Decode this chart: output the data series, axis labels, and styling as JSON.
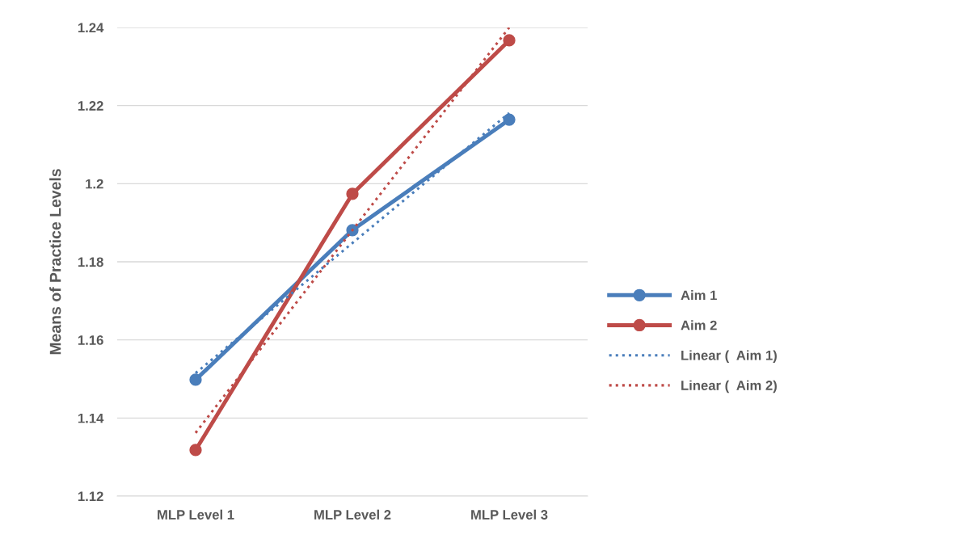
{
  "chart_data": {
    "type": "line",
    "ylabel": "Means of Practice Levels",
    "categories": [
      "MLP Level 1",
      "MLP Level 2",
      "MLP Level 3"
    ],
    "series": [
      {
        "name": "Aim 1",
        "color": "#4a7ebb",
        "values": [
          1.1498,
          1.1881,
          1.2164
        ],
        "marker": "circle",
        "line_style": "solid"
      },
      {
        "name": "Aim 2",
        "color": "#be4b48",
        "values": [
          1.1318,
          1.1974,
          1.2367
        ],
        "marker": "circle",
        "line_style": "solid"
      },
      {
        "name": "Linear (  Aim 1)",
        "color": "#4a7ebb",
        "values": [
          1.1515,
          1.1848,
          1.2181
        ],
        "marker": "none",
        "line_style": "dotted"
      },
      {
        "name": "Linear (  Aim 2)",
        "color": "#be4b48",
        "values": [
          1.1362,
          1.1881,
          1.24
        ],
        "marker": "none",
        "line_style": "dotted"
      }
    ],
    "ylim": [
      1.12,
      1.24
    ],
    "yticks": [
      1.12,
      1.14,
      1.16,
      1.18,
      {
        "value": 1.2,
        "label": "1.2"
      },
      1.22,
      1.24
    ],
    "grid": "y",
    "legend": "right"
  }
}
